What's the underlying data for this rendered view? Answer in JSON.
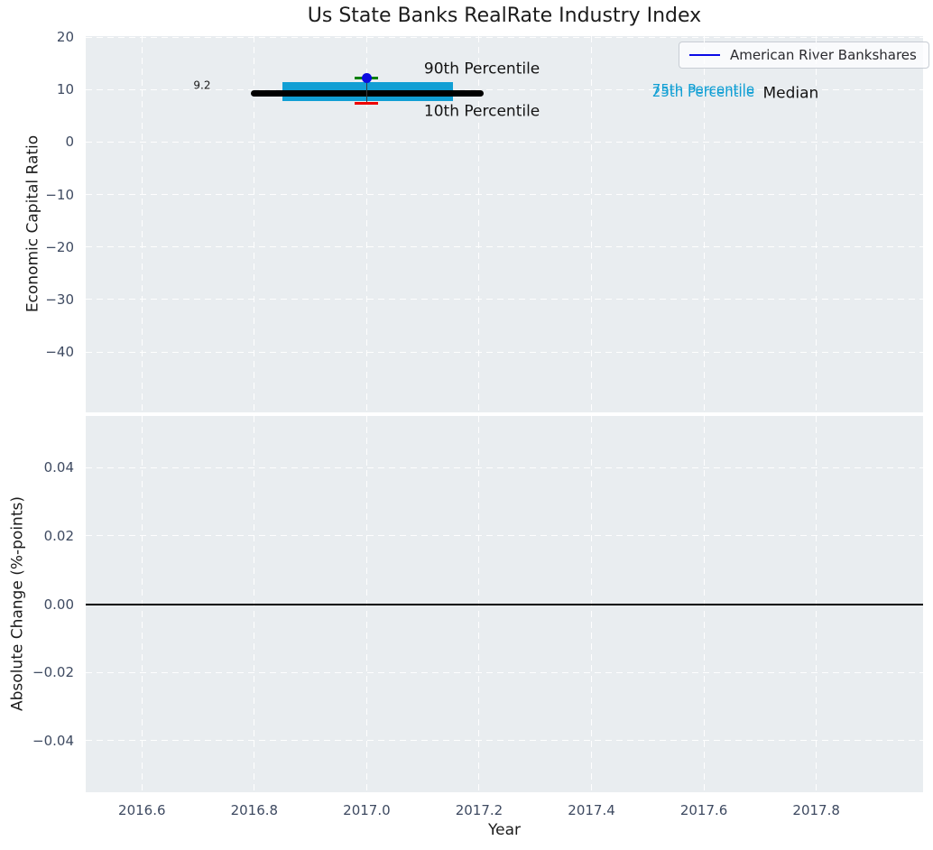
{
  "title": "Us State Banks RealRate Industry Index",
  "legend": {
    "items": [
      {
        "label": "American River Bankshares",
        "color": "#0a0ae6"
      }
    ]
  },
  "colors": {
    "plot_background": "#e9edf0",
    "grid": "#ffffff",
    "tick_text": "#3e4a61",
    "label_text": "#1c1c1c",
    "iqr_box": "#119fd4",
    "median_line": "#000000",
    "p90_cap": "#008000",
    "p10_cap": "#ee0000",
    "company_point": "#0b0be0",
    "whisker": "#3a3a3a",
    "zero_line": "#000000",
    "accent_text": "#119fd4"
  },
  "chart_data": [
    {
      "type": "box-whisker",
      "panel": "top",
      "title": "Us State Banks RealRate Industry Index",
      "ylabel": "Economic Capital Ratio",
      "xlim": [
        2016.5,
        2017.99
      ],
      "ylim": [
        -51.5,
        20.2
      ],
      "grid": "white dashed",
      "yticks": [
        {
          "v": 20,
          "label": "20"
        },
        {
          "v": 10,
          "label": "10"
        },
        {
          "v": 0,
          "label": "0"
        },
        {
          "v": -10,
          "label": "−10"
        },
        {
          "v": -20,
          "label": "−20"
        },
        {
          "v": -30,
          "label": "−30"
        },
        {
          "v": -40,
          "label": "−40"
        }
      ],
      "xticks": [
        {
          "v": 2016.6,
          "label": "2016.6"
        },
        {
          "v": 2016.8,
          "label": "2016.8"
        },
        {
          "v": 2017.0,
          "label": "2017.0"
        },
        {
          "v": 2017.2,
          "label": "2017.2"
        },
        {
          "v": 2017.4,
          "label": "2017.4"
        },
        {
          "v": 2017.6,
          "label": "2017.6"
        },
        {
          "v": 2017.8,
          "label": "2017.8"
        }
      ],
      "year": 2017.0,
      "stats": {
        "median": 9.2,
        "p25": 7.8,
        "p75": 11.4,
        "p10": 7.3,
        "p90": 12.2
      },
      "company_point": {
        "name": "American River Bankshares",
        "year": 2017.0,
        "value": 12.2
      },
      "median_line": {
        "y": 9.2,
        "x_from": 2016.794,
        "x_to": 2017.208
      },
      "iqr_box": {
        "x_from": 2016.85,
        "x_to": 2017.153,
        "y_from": 7.8,
        "y_to": 11.4
      },
      "whisker": {
        "x": 2017.0,
        "y_from": 7.34,
        "y_to": 12.2,
        "cap_halfwidth_years": 0.021
      },
      "annotations": [
        {
          "text": "9.2",
          "x": 2016.707,
          "y": 10.78,
          "ha": "center",
          "color": "#1a1a1a",
          "size": 12
        },
        {
          "text": "90th Percentile",
          "x": 2017.102,
          "y": 13.87,
          "ha": "left",
          "color": "#141414",
          "size": 17
        },
        {
          "text": "10th Percentile",
          "x": 2017.102,
          "y": 5.79,
          "ha": "left",
          "color": "#141414",
          "size": 17
        },
        {
          "text": "75th Percentile",
          "x": 2017.508,
          "y": 10.09,
          "ha": "left",
          "color": "#119fd4",
          "size": 15
        },
        {
          "text": "25th Percentile",
          "x": 2017.508,
          "y": 9.57,
          "ha": "left",
          "color": "#119fd4",
          "size": 15
        },
        {
          "text": "Median",
          "x": 2017.705,
          "y": 9.22,
          "ha": "left",
          "color": "#141414",
          "size": 17
        }
      ]
    },
    {
      "type": "line",
      "panel": "bottom",
      "ylabel": "Absolute Change (%-points)",
      "xlabel": "Year",
      "xlim": [
        2016.5,
        2017.99
      ],
      "ylim": [
        -0.0552,
        0.0552
      ],
      "grid": "white dashed",
      "yticks": [
        {
          "v": 0.04,
          "label": "0.04"
        },
        {
          "v": 0.02,
          "label": "0.02"
        },
        {
          "v": 0.0,
          "label": "0.00"
        },
        {
          "v": -0.02,
          "label": "−0.02"
        },
        {
          "v": -0.04,
          "label": "−0.04"
        }
      ],
      "zero_line": {
        "y": 0.0,
        "color": "#000000"
      },
      "series": []
    }
  ]
}
